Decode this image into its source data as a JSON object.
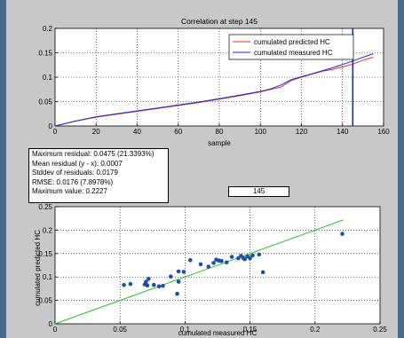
{
  "colors": {
    "window_bg": "#4a6a8c",
    "figure_bg": "#c8c8c8",
    "predicted": "#e0302a",
    "measured": "#1a2bd0",
    "marker_line": "#1a2bd0",
    "points": "#1f4fa0",
    "fit_line": "#2fbf2f"
  },
  "stats_box": {
    "lines": [
      "Maximum residual: 0.0475 (21.3393%)",
      "Mean residual (y - x): 0.0007",
      "Stddev of residuals: 0.0179",
      "RMSE: 0.0176 (7.8978%)",
      "Maximum value: 0.2227"
    ]
  },
  "step_field": {
    "value": "145"
  },
  "chart_data": [
    {
      "type": "line",
      "title": "Correlation at step 145",
      "xlabel": "sample",
      "ylabel": "",
      "xlim": [
        0,
        160
      ],
      "ylim": [
        0,
        0.2
      ],
      "x_ticks": [
        0,
        20,
        40,
        60,
        80,
        100,
        120,
        140,
        160
      ],
      "y_ticks": [
        0,
        0.05,
        0.1,
        0.15,
        0.2
      ],
      "x_tick_labels": [
        "0",
        "20",
        "40",
        "60",
        "80",
        "100",
        "120",
        "140",
        "160"
      ],
      "y_tick_labels": [
        "0",
        "0.05",
        "0.1",
        "0.15",
        "0.2"
      ],
      "grid": true,
      "legend_position": "top-right",
      "vertical_marker_x": 145,
      "series": [
        {
          "name": "cumulated predicted HC",
          "color": "#e0302a",
          "x": [
            0,
            10,
            20,
            30,
            40,
            50,
            60,
            70,
            80,
            90,
            100,
            105,
            110,
            115,
            120,
            125,
            130,
            135,
            140,
            145,
            150,
            155
          ],
          "y": [
            0.0,
            0.01,
            0.018,
            0.024,
            0.03,
            0.036,
            0.042,
            0.048,
            0.055,
            0.062,
            0.07,
            0.075,
            0.08,
            0.093,
            0.1,
            0.106,
            0.112,
            0.116,
            0.121,
            0.127,
            0.135,
            0.141
          ]
        },
        {
          "name": "cumulated measured HC",
          "color": "#1a2bd0",
          "x": [
            0,
            10,
            20,
            30,
            40,
            50,
            60,
            70,
            80,
            90,
            100,
            105,
            110,
            115,
            120,
            125,
            130,
            135,
            140,
            145,
            150,
            155
          ],
          "y": [
            0.0,
            0.01,
            0.019,
            0.025,
            0.031,
            0.037,
            0.043,
            0.049,
            0.056,
            0.063,
            0.071,
            0.076,
            0.084,
            0.095,
            0.101,
            0.107,
            0.113,
            0.119,
            0.126,
            0.133,
            0.141,
            0.148
          ]
        }
      ]
    },
    {
      "type": "scatter",
      "title": "",
      "xlabel": "cumulated measured HC",
      "ylabel": "cumulated predicted HC",
      "xlim": [
        0,
        0.25
      ],
      "ylim": [
        0,
        0.25
      ],
      "x_ticks": [
        0,
        0.05,
        0.1,
        0.15,
        0.2,
        0.25
      ],
      "y_ticks": [
        0,
        0.05,
        0.1,
        0.15,
        0.2,
        0.25
      ],
      "x_tick_labels": [
        "0",
        "0.05",
        "0.1",
        "0.15",
        "0.2",
        "0.25"
      ],
      "y_tick_labels": [
        "0",
        "0.05",
        "0.1",
        "0.15",
        "0.2",
        "0.25"
      ],
      "grid": true,
      "identity_line": [
        [
          0,
          0
        ],
        [
          0.222,
          0.222
        ]
      ],
      "points": [
        [
          0.053,
          0.083
        ],
        [
          0.058,
          0.085
        ],
        [
          0.069,
          0.084
        ],
        [
          0.07,
          0.09
        ],
        [
          0.071,
          0.082
        ],
        [
          0.072,
          0.096
        ],
        [
          0.076,
          0.083
        ],
        [
          0.08,
          0.08
        ],
        [
          0.083,
          0.081
        ],
        [
          0.089,
          0.101
        ],
        [
          0.094,
          0.064
        ],
        [
          0.095,
          0.112
        ],
        [
          0.095,
          0.09
        ],
        [
          0.099,
          0.111
        ],
        [
          0.104,
          0.136
        ],
        [
          0.112,
          0.127
        ],
        [
          0.118,
          0.122
        ],
        [
          0.122,
          0.13
        ],
        [
          0.124,
          0.137
        ],
        [
          0.126,
          0.135
        ],
        [
          0.128,
          0.134
        ],
        [
          0.132,
          0.131
        ],
        [
          0.136,
          0.143
        ],
        [
          0.141,
          0.14
        ],
        [
          0.143,
          0.145
        ],
        [
          0.145,
          0.14
        ],
        [
          0.146,
          0.138
        ],
        [
          0.148,
          0.144
        ],
        [
          0.15,
          0.14
        ],
        [
          0.152,
          0.146
        ],
        [
          0.157,
          0.148
        ],
        [
          0.16,
          0.11
        ],
        [
          0.221,
          0.192
        ]
      ]
    }
  ]
}
